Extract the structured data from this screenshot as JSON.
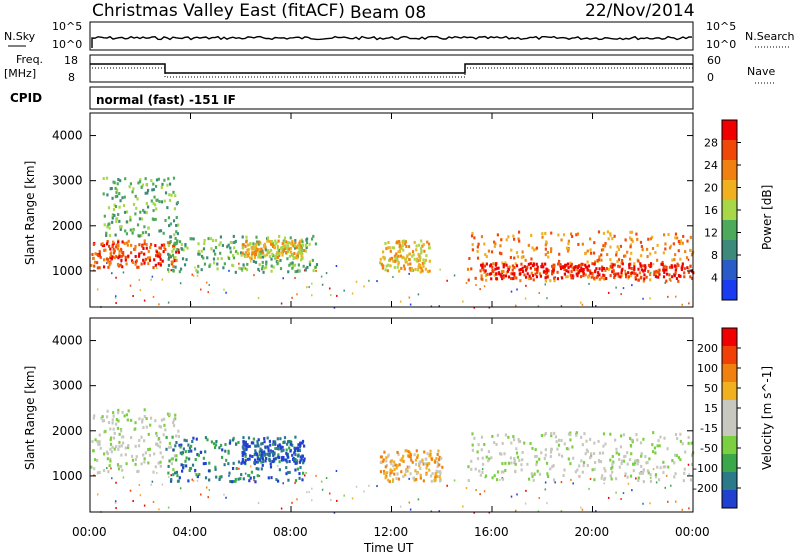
{
  "header": {
    "title": "Christmas Valley East (fitACF)",
    "beam": "Beam 08",
    "date": "22/Nov/2014"
  },
  "top_panels": {
    "nsky_label": "N.Sky",
    "nsky_ticks": [
      "10^5",
      "10^0"
    ],
    "nsearch_label": "N.Search",
    "nsearch_ticks": [
      "10^5",
      "10^0"
    ],
    "freq_label": "Freq.",
    "freq_unit": "[MHz]",
    "freq_ticks": [
      "18",
      "8"
    ],
    "nave_label": "Nave",
    "nave_ticks": [
      "60",
      "0"
    ],
    "cpid_label": "CPID",
    "cpid_text": "normal (fast) -151 IF"
  },
  "x_axis": {
    "label": "Time UT",
    "ticks": [
      "00:00",
      "04:00",
      "08:00",
      "12:00",
      "16:00",
      "20:00",
      "00:00"
    ]
  },
  "colors": {
    "power_scale": [
      "#1a3cf0",
      "#2a5cc8",
      "#3d8a7a",
      "#4caa5a",
      "#a8d848",
      "#f0b020",
      "#f08010",
      "#f04808",
      "#f00000"
    ],
    "velocity_scale": [
      "#2040d0",
      "#2a7a8a",
      "#3aa84a",
      "#7ad040",
      "#c8c8c0",
      "#c8c8c0",
      "#f0b020",
      "#f08010",
      "#f04008",
      "#f00000"
    ]
  },
  "chart_data": [
    {
      "type": "heatmap",
      "name": "power",
      "ylabel": "Slant Range [km]",
      "ylim": [
        200,
        4500
      ],
      "yticks": [
        "1000",
        "2000",
        "3000",
        "4000"
      ],
      "xlim_hours": [
        0,
        24
      ],
      "colorbar": {
        "label": "Power [dB]",
        "ticks": [
          "4",
          "8",
          "12",
          "16",
          "20",
          "24",
          "28"
        ]
      },
      "regions": [
        {
          "t0": 0.0,
          "t1": 3.5,
          "r0": 1100,
          "r1": 1700,
          "level": 8
        },
        {
          "t0": 0.5,
          "t1": 3.5,
          "r0": 1800,
          "r1": 3100,
          "level": 4
        },
        {
          "t0": 3.0,
          "t1": 9.0,
          "r0": 1000,
          "r1": 1800,
          "level": 4
        },
        {
          "t0": 6.0,
          "t1": 8.5,
          "r0": 1300,
          "r1": 1700,
          "level": 6
        },
        {
          "t0": 11.5,
          "t1": 13.5,
          "r0": 1000,
          "r1": 1700,
          "level": 6
        },
        {
          "t0": 15.0,
          "t1": 24.0,
          "r0": 800,
          "r1": 1900,
          "level": 7
        },
        {
          "t0": 15.5,
          "t1": 24.0,
          "r0": 850,
          "r1": 1200,
          "level": 9
        }
      ]
    },
    {
      "type": "heatmap",
      "name": "velocity",
      "ylabel": "Slant Range [km]",
      "ylim": [
        200,
        4500
      ],
      "yticks": [
        "1000",
        "2000",
        "3000",
        "4000"
      ],
      "xlim_hours": [
        0,
        24
      ],
      "colorbar": {
        "label": "Velocity [m s^-1]",
        "ticks": [
          "200",
          "100",
          "50",
          "15",
          "-15",
          "-50",
          "-100",
          "-200"
        ]
      },
      "regions": [
        {
          "t0": 0.0,
          "t1": 3.5,
          "r0": 1100,
          "r1": 2500,
          "level": 5
        },
        {
          "t0": 3.0,
          "t1": 8.5,
          "r0": 900,
          "r1": 1900,
          "level": 2
        },
        {
          "t0": 6.0,
          "t1": 8.5,
          "r0": 1300,
          "r1": 1800,
          "level": 1
        },
        {
          "t0": 11.5,
          "t1": 14.0,
          "r0": 900,
          "r1": 1600,
          "level": 7
        },
        {
          "t0": 15.0,
          "t1": 24.0,
          "r0": 900,
          "r1": 2000,
          "level": 5
        }
      ]
    }
  ]
}
